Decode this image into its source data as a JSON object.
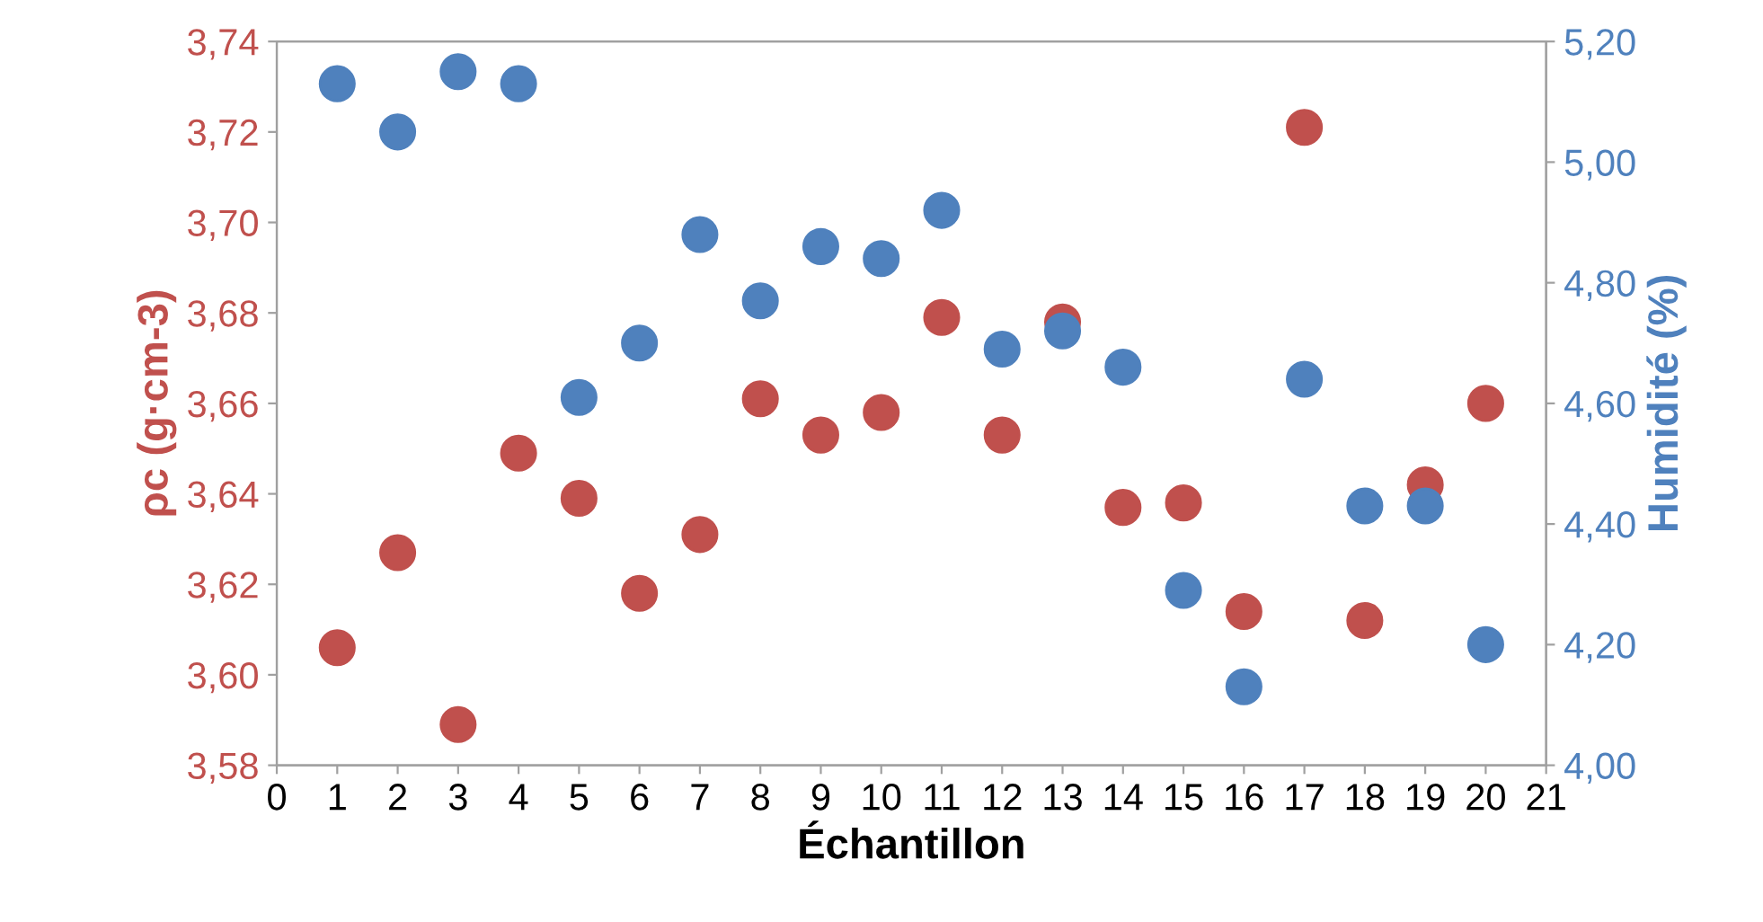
{
  "chart_data": {
    "type": "scatter",
    "xlabel": "Échantillon",
    "ylabel": "ρc (g·cm-3)",
    "y2label": "Humidité (%)",
    "marker": "circle",
    "grid": false,
    "legend": false,
    "x": [
      1,
      2,
      3,
      4,
      5,
      6,
      7,
      8,
      9,
      10,
      11,
      12,
      13,
      14,
      15,
      16,
      17,
      18,
      19,
      20
    ],
    "xlim": [
      0,
      21
    ],
    "xticks": [
      0,
      1,
      2,
      3,
      4,
      5,
      6,
      7,
      8,
      9,
      10,
      11,
      12,
      13,
      14,
      15,
      16,
      17,
      18,
      19,
      20,
      21
    ],
    "ylim": [
      3.58,
      3.74
    ],
    "yticks": [
      {
        "value": 3.58,
        "label": "3,58"
      },
      {
        "value": 3.6,
        "label": "3,60"
      },
      {
        "value": 3.62,
        "label": "3,62"
      },
      {
        "value": 3.64,
        "label": "3,64"
      },
      {
        "value": 3.66,
        "label": "3,66"
      },
      {
        "value": 3.68,
        "label": "3,68"
      },
      {
        "value": 3.7,
        "label": "3,70"
      },
      {
        "value": 3.72,
        "label": "3,72"
      },
      {
        "value": 3.74,
        "label": "3,74"
      }
    ],
    "y2lim": [
      4.0,
      5.2
    ],
    "y2ticks": [
      {
        "value": 4.0,
        "label": "4,00"
      },
      {
        "value": 4.2,
        "label": "4,20"
      },
      {
        "value": 4.4,
        "label": "4,40"
      },
      {
        "value": 4.6,
        "label": "4,60"
      },
      {
        "value": 4.8,
        "label": "4,80"
      },
      {
        "value": 5.0,
        "label": "5,00"
      },
      {
        "value": 5.2,
        "label": "5,20"
      }
    ],
    "series": [
      {
        "color": "#c0504d",
        "values": [
          3.606,
          3.627,
          3.589,
          3.649,
          3.639,
          3.618,
          3.631,
          3.661,
          3.653,
          3.658,
          3.679,
          3.653,
          3.678,
          3.637,
          3.638,
          3.614,
          3.721,
          3.612,
          3.642,
          3.66
        ]
      },
      {
        "color": "#4f81bd",
        "axis": "y2",
        "values": [
          5.13,
          5.05,
          5.15,
          5.13,
          4.61,
          4.7,
          4.88,
          4.77,
          4.86,
          4.84,
          4.92,
          4.69,
          4.72,
          4.66,
          4.29,
          4.13,
          4.64,
          4.43,
          4.43,
          4.2
        ]
      }
    ]
  }
}
